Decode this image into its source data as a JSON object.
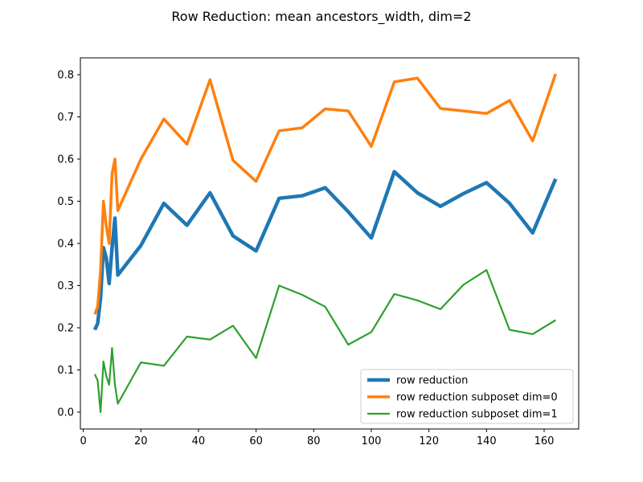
{
  "chart_data": {
    "type": "line",
    "title": "Row Reduction: mean ancestors_width, dim=2",
    "xlabel": "",
    "ylabel": "",
    "xlim": [
      -1.0,
      172.0
    ],
    "ylim": [
      -0.04,
      0.84
    ],
    "x_ticks": [
      0,
      20,
      40,
      60,
      80,
      100,
      120,
      140,
      160
    ],
    "y_ticks": [
      "0.0",
      "0.1",
      "0.2",
      "0.3",
      "0.4",
      "0.5",
      "0.6",
      "0.7",
      "0.8"
    ],
    "grid": false,
    "legend_position": "lower-right",
    "series": [
      {
        "name": "row reduction",
        "color": "#1f77b4",
        "points": [
          [
            4,
            0.195
          ],
          [
            5,
            0.21
          ],
          [
            6,
            0.27
          ],
          [
            7,
            0.39
          ],
          [
            8,
            0.365
          ],
          [
            9,
            0.305
          ],
          [
            10,
            0.39
          ],
          [
            11,
            0.46
          ],
          [
            12,
            0.325
          ],
          [
            20,
            0.395
          ],
          [
            28,
            0.495
          ],
          [
            36,
            0.443
          ],
          [
            44,
            0.52
          ],
          [
            52,
            0.418
          ],
          [
            60,
            0.382
          ],
          [
            68,
            0.507
          ],
          [
            76,
            0.513
          ],
          [
            84,
            0.532
          ],
          [
            92,
            0.475
          ],
          [
            100,
            0.413
          ],
          [
            108,
            0.57
          ],
          [
            116,
            0.52
          ],
          [
            124,
            0.488
          ],
          [
            132,
            0.518
          ],
          [
            140,
            0.544
          ],
          [
            148,
            0.495
          ],
          [
            156,
            0.425
          ],
          [
            164,
            0.553
          ]
        ]
      },
      {
        "name": "row reduction subposet dim=0",
        "color": "#ff7f0e",
        "points": [
          [
            4,
            0.232
          ],
          [
            5,
            0.25
          ],
          [
            6,
            0.335
          ],
          [
            7,
            0.5
          ],
          [
            8,
            0.44
          ],
          [
            9,
            0.4
          ],
          [
            10,
            0.565
          ],
          [
            11,
            0.6
          ],
          [
            12,
            0.478
          ],
          [
            20,
            0.6
          ],
          [
            28,
            0.695
          ],
          [
            36,
            0.635
          ],
          [
            44,
            0.788
          ],
          [
            52,
            0.597
          ],
          [
            60,
            0.547
          ],
          [
            68,
            0.667
          ],
          [
            76,
            0.674
          ],
          [
            84,
            0.719
          ],
          [
            92,
            0.714
          ],
          [
            100,
            0.63
          ],
          [
            108,
            0.783
          ],
          [
            116,
            0.792
          ],
          [
            124,
            0.72
          ],
          [
            132,
            0.714
          ],
          [
            140,
            0.708
          ],
          [
            148,
            0.739
          ],
          [
            156,
            0.643
          ],
          [
            164,
            0.802
          ]
        ]
      },
      {
        "name": "row reduction subposet dim=1",
        "color": "#2ca02c",
        "points": [
          [
            4,
            0.09
          ],
          [
            5,
            0.075
          ],
          [
            6,
            0.0
          ],
          [
            7,
            0.12
          ],
          [
            8,
            0.085
          ],
          [
            9,
            0.065
          ],
          [
            10,
            0.152
          ],
          [
            11,
            0.065
          ],
          [
            12,
            0.02
          ],
          [
            20,
            0.118
          ],
          [
            28,
            0.11
          ],
          [
            36,
            0.179
          ],
          [
            44,
            0.172
          ],
          [
            52,
            0.205
          ],
          [
            60,
            0.128
          ],
          [
            68,
            0.3
          ],
          [
            76,
            0.278
          ],
          [
            84,
            0.25
          ],
          [
            92,
            0.16
          ],
          [
            100,
            0.19
          ],
          [
            108,
            0.28
          ],
          [
            116,
            0.265
          ],
          [
            124,
            0.244
          ],
          [
            132,
            0.302
          ],
          [
            140,
            0.337
          ],
          [
            148,
            0.195
          ],
          [
            156,
            0.185
          ],
          [
            164,
            0.218
          ]
        ]
      }
    ]
  }
}
